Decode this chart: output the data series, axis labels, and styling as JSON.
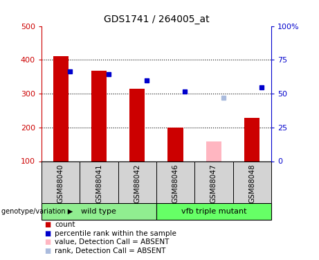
{
  "title": "GDS1741 / 264005_at",
  "samples": [
    "GSM88040",
    "GSM88041",
    "GSM88042",
    "GSM88046",
    "GSM88047",
    "GSM88048"
  ],
  "groups": [
    {
      "name": "wild type",
      "indices": [
        0,
        1,
        2
      ],
      "color": "#90EE90"
    },
    {
      "name": "vfb triple mutant",
      "indices": [
        3,
        4,
        5
      ],
      "color": "#66FF66"
    }
  ],
  "bar_bottom": 100,
  "count_values": [
    410,
    368,
    315,
    200,
    null,
    228
  ],
  "count_absent": [
    null,
    null,
    null,
    null,
    158,
    null
  ],
  "percentile_values": [
    365,
    358,
    340,
    307,
    null,
    318
  ],
  "percentile_absent": [
    null,
    null,
    null,
    null,
    287,
    null
  ],
  "ylim_left": [
    100,
    500
  ],
  "ylim_right": [
    0,
    100
  ],
  "yticks_left": [
    100,
    200,
    300,
    400,
    500
  ],
  "yticks_right": [
    0,
    25,
    50,
    75,
    100
  ],
  "ytick_labels_right": [
    "0",
    "25",
    "50",
    "75",
    "100%"
  ],
  "ylabel_left_color": "#CC0000",
  "ylabel_right_color": "#0000CC",
  "bar_color_present": "#CC0000",
  "bar_color_absent": "#FFB6C1",
  "dot_color_present": "#0000CC",
  "dot_color_absent": "#AABBDD",
  "label_area_color": "#D3D3D3",
  "legend_items": [
    {
      "label": "count",
      "color": "#CC0000"
    },
    {
      "label": "percentile rank within the sample",
      "color": "#0000CC"
    },
    {
      "label": "value, Detection Call = ABSENT",
      "color": "#FFB6C1"
    },
    {
      "label": "rank, Detection Call = ABSENT",
      "color": "#AABBDD"
    }
  ]
}
